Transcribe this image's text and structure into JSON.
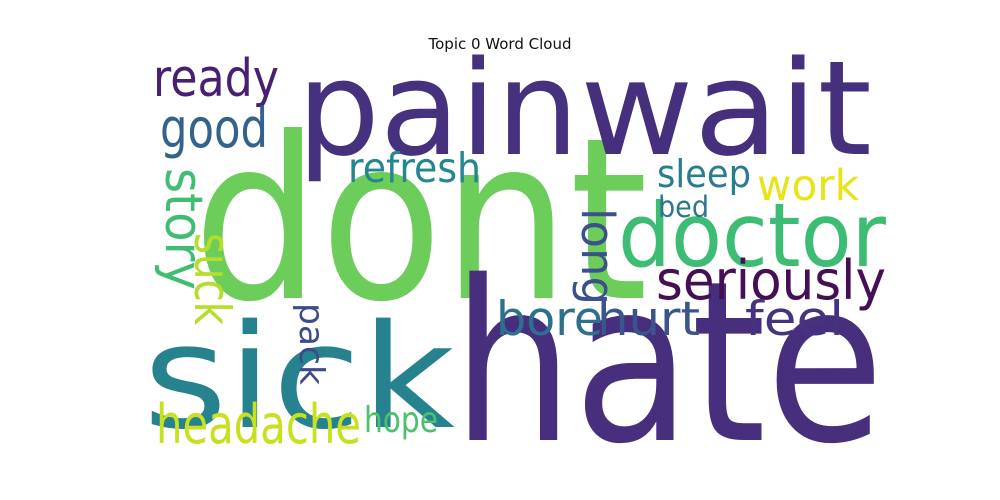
{
  "chart_data": {
    "type": "wordcloud",
    "title": "Topic 0 Word Cloud",
    "words": [
      {
        "text": "dont",
        "weight": 1.0,
        "color": "#6ccd5a"
      },
      {
        "text": "hate",
        "weight": 0.99,
        "color": "#472f7d"
      },
      {
        "text": "pain",
        "weight": 0.58,
        "color": "#46317e"
      },
      {
        "text": "wait",
        "weight": 0.58,
        "color": "#46307e"
      },
      {
        "text": "sick",
        "weight": 0.64,
        "color": "#26828e"
      },
      {
        "text": "doctor",
        "weight": 0.39,
        "color": "#3dbc74"
      },
      {
        "text": "seriously",
        "weight": 0.24,
        "color": "#440f54"
      },
      {
        "text": "hurt",
        "weight": 0.21,
        "color": "#3a548c"
      },
      {
        "text": "feel",
        "weight": 0.21,
        "color": "#46337f"
      },
      {
        "text": "bore",
        "weight": 0.21,
        "color": "#2e6f8e"
      },
      {
        "text": "long",
        "weight": 0.2,
        "color": "#3b518b"
      },
      {
        "text": "work",
        "weight": 0.19,
        "color": "#e8e419"
      },
      {
        "text": "sleep",
        "weight": 0.17,
        "color": "#287d8e"
      },
      {
        "text": "bed",
        "weight": 0.13,
        "color": "#2a778e"
      },
      {
        "text": "ready",
        "weight": 0.23,
        "color": "#482071"
      },
      {
        "text": "good",
        "weight": 0.24,
        "color": "#33638d"
      },
      {
        "text": "refresh",
        "weight": 0.18,
        "color": "#24878e"
      },
      {
        "text": "story",
        "weight": 0.23,
        "color": "#40bd72"
      },
      {
        "text": "suck",
        "weight": 0.22,
        "color": "#b5de2b"
      },
      {
        "text": "pack",
        "weight": 0.15,
        "color": "#3e4a89"
      },
      {
        "text": "headache",
        "weight": 0.24,
        "color": "#c8e020"
      },
      {
        "text": "hope",
        "weight": 0.16,
        "color": "#4ac16d"
      }
    ]
  }
}
